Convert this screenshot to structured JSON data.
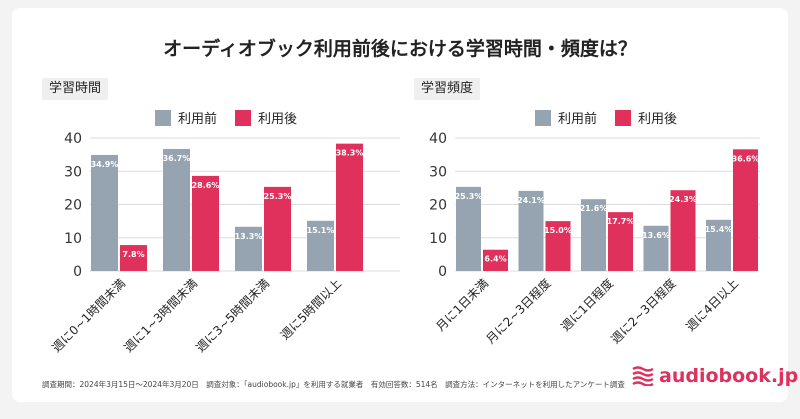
{
  "title": "オーディオブック利用前後における学習時間・頻度は？",
  "colors": {
    "before": "#96a4b1",
    "after": "#e0305c",
    "grid": "#dddddd"
  },
  "footer": "調査期間：2024年3月15日〜2024年3月20日　調査対象：「audiobook.jp」を利用する就業者　有効回答数：514名　調査方法：インターネットを利用したアンケート調査",
  "logo": {
    "text": "audiobook.jp",
    "icon": "waves-logo-icon"
  },
  "chart_data": [
    {
      "type": "bar",
      "title": "学習時間",
      "categories": [
        "週に0~1時間未満",
        "週に1~3時間未満",
        "週に3~5時間未満",
        "週に5時間以上"
      ],
      "series": [
        {
          "name": "利用前",
          "values": [
            34.9,
            36.7,
            13.3,
            15.1
          ],
          "labels": [
            "34.9%",
            "36.7%",
            "13.3%",
            "15.1%"
          ]
        },
        {
          "name": "利用後",
          "values": [
            7.8,
            28.6,
            25.3,
            38.3
          ],
          "labels": [
            "7.8%",
            "28.6%",
            "25.3%",
            "38.3%"
          ]
        }
      ],
      "ylim": [
        0,
        40
      ],
      "yticks": [
        "0",
        "10",
        "20",
        "30",
        "40"
      ],
      "grid": true,
      "legend": "top"
    },
    {
      "type": "bar",
      "title": "学習頻度",
      "categories": [
        "月に1日未満",
        "月に2~3日程度",
        "週に1日程度",
        "週に2~3日程度",
        "週に4日以上"
      ],
      "series": [
        {
          "name": "利用前",
          "values": [
            25.3,
            24.1,
            21.6,
            13.6,
            15.4
          ],
          "labels": [
            "25.3%",
            "24.1%",
            "21.6%",
            "13.6%",
            "15.4%"
          ]
        },
        {
          "name": "利用後",
          "values": [
            6.4,
            15.0,
            17.7,
            24.3,
            36.6
          ],
          "labels": [
            "6.4%",
            "15.0%",
            "17.7%",
            "24.3%",
            "36.6%"
          ]
        }
      ],
      "ylim": [
        0,
        40
      ],
      "yticks": [
        "0",
        "10",
        "20",
        "30",
        "40"
      ],
      "grid": true,
      "legend": "top"
    }
  ]
}
